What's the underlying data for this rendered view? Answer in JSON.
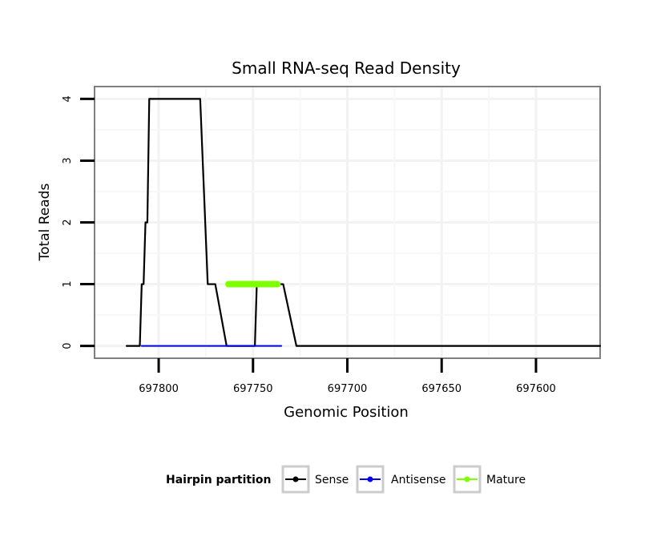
{
  "chart_data": {
    "type": "line",
    "title": "Small RNA-seq Read Density",
    "xlabel": "Genomic Position",
    "ylabel": "Total Reads",
    "xlim": [
      697834,
      697566
    ],
    "x_reversed": true,
    "ylim": [
      -0.2,
      4.2
    ],
    "x_ticks": [
      697800,
      697750,
      697700,
      697650,
      697600
    ],
    "x_tick_labels": [
      "697800",
      "697750",
      "697700",
      "697650",
      "697600"
    ],
    "y_ticks": [
      0,
      1,
      2,
      3,
      4
    ],
    "y_tick_labels": [
      "0",
      "1",
      "2",
      "3",
      "4"
    ],
    "grid": true,
    "legend": {
      "title": "Hairpin partition",
      "position": "bottom",
      "entries": [
        {
          "label": "Sense",
          "color": "#000000"
        },
        {
          "label": "Antisense",
          "color": "#0000ff"
        },
        {
          "label": "Mature",
          "color": "#7fff00"
        }
      ]
    },
    "series": [
      {
        "name": "Sense",
        "color": "#000000",
        "x": [
          697817,
          697810,
          697809,
          697808,
          697807,
          697806,
          697805,
          697803,
          697801,
          697799,
          697797,
          697795,
          697793,
          697791,
          697789,
          697787,
          697785,
          697783,
          697781,
          697780,
          697779,
          697778,
          697774,
          697773,
          697771,
          697770,
          697764,
          697762,
          697749,
          697748,
          697738,
          697737,
          697735,
          697734,
          697727,
          697700,
          697650,
          697600,
          697566
        ],
        "values": [
          0,
          0,
          1,
          1,
          2,
          2,
          4,
          4,
          4,
          4,
          4,
          4,
          4,
          4,
          4,
          4,
          4,
          4,
          4,
          4,
          4,
          4,
          1,
          1,
          1,
          1,
          0,
          0,
          0,
          1,
          1,
          1,
          1,
          1,
          0,
          0,
          0,
          0,
          0
        ]
      },
      {
        "name": "Antisense",
        "color": "#0000ff",
        "x": [
          697809,
          697771,
          697749,
          697735
        ],
        "values": [
          0,
          0,
          0,
          0
        ]
      },
      {
        "name": "Mature",
        "color": "#7fff00",
        "x": [
          697763,
          697737
        ],
        "values": [
          1,
          1
        ]
      }
    ]
  }
}
